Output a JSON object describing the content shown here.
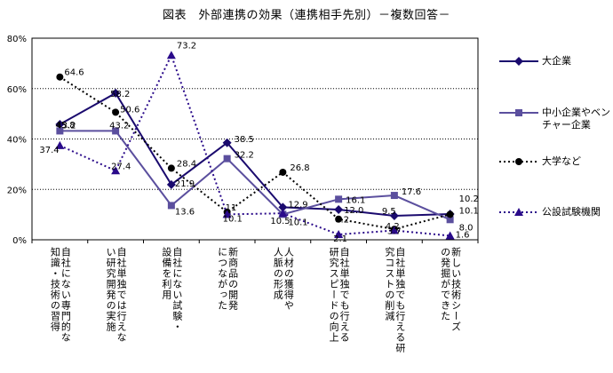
{
  "chart_data": {
    "type": "line",
    "title": "図表　外部連携の効果（連携相手先別）－複数回答－",
    "yticks": [
      "0%",
      "20%",
      "40%",
      "60%",
      "80%"
    ],
    "ylim": [
      0,
      80
    ],
    "grid": true,
    "legend_position": "right",
    "categories": [
      "自社にない専門的な\n知識・技術の習得",
      "自社単独では行えな\nい研究開発の実施",
      "自社にない試験・\n設備を利用",
      "新商品の開発\nにつながった",
      "人材の獲得や\n人脈の形成",
      "自社単独でも行える\n研究スピードの向上",
      "自社単独でも行える研\n究コストの削減",
      "新しい技術シーズ\nの発掘ができた"
    ],
    "series": [
      {
        "name": "大企業",
        "color": "#1a0a6e",
        "marker": "diamond",
        "dash": "",
        "width": 2,
        "values": [
          45.8,
          58.2,
          21.9,
          38.5,
          12.9,
          12.0,
          9.5,
          10.2
        ],
        "labels": [
          "45.8",
          "58.2",
          "21.9",
          "38.5",
          "12.9",
          "12.0",
          "9.5",
          "10.2"
        ]
      },
      {
        "name": "中小企業やベン\nチャー企業",
        "color": "#5b4f9e",
        "marker": "square",
        "dash": "",
        "width": 2,
        "values": [
          43.2,
          43.2,
          13.6,
          32.2,
          10.1,
          16.1,
          17.6,
          8.0
        ],
        "labels": [
          "43.2",
          "43.2",
          "13.6",
          "32.2",
          "10.1",
          "16.1",
          "17.6",
          "8.0"
        ]
      },
      {
        "name": "大学など",
        "color": "#000000",
        "marker": "circle",
        "dash": "2,3",
        "width": 2,
        "values": [
          64.6,
          50.6,
          28.4,
          11.0,
          26.8,
          8.2,
          4.2,
          10.1
        ],
        "labels": [
          "64.6",
          "50.6",
          "28.4",
          "11",
          "26.8",
          "8.2",
          "4.2",
          "10.1"
        ]
      },
      {
        "name": "公設試験機関",
        "color": "#2a0a8a",
        "marker": "triangle",
        "dash": "2,3",
        "width": 2,
        "values": [
          37.4,
          27.4,
          73.2,
          10.1,
          10.5,
          2.1,
          3.7,
          1.6
        ],
        "labels": [
          "37.4",
          "27.4",
          "73.2",
          "10.1",
          "10.5",
          "2.1",
          "3.7",
          "1.6"
        ]
      }
    ]
  }
}
